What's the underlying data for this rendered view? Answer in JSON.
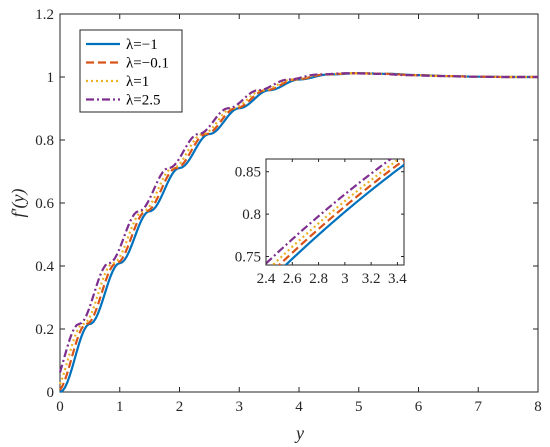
{
  "chart_data": {
    "type": "line",
    "title": "",
    "xlabel": "y",
    "ylabel": "f′(y)",
    "xlim": [
      0,
      8
    ],
    "ylim": [
      0,
      1.2
    ],
    "xticks": [
      0,
      1,
      2,
      3,
      4,
      5,
      6,
      7,
      8
    ],
    "yticks": [
      0,
      0.2,
      0.4,
      0.6,
      0.8,
      1,
      1.2
    ],
    "xtick_labels": [
      "0",
      "1",
      "2",
      "3",
      "4",
      "5",
      "6",
      "7",
      "8"
    ],
    "ytick_labels": [
      "0",
      "0.2",
      "0.4",
      "0.6",
      "0.8",
      "1",
      "1.2"
    ],
    "grid": false,
    "legend_position": "top-left",
    "series": [
      {
        "name": "λ=−1",
        "color": "#0072BD",
        "dash": "solid",
        "offset": 0.0
      },
      {
        "name": "λ=−0.1",
        "color": "#D95319",
        "dash": "dashed",
        "offset": 0.055
      },
      {
        "name": "λ=1",
        "color": "#EDB120",
        "dash": "dotted",
        "offset": 0.11
      },
      {
        "name": "λ=2.5",
        "color": "#7E2F8E",
        "dash": "dashdot",
        "offset": 0.18
      }
    ],
    "x": [
      0,
      0.5,
      1,
      1.5,
      2,
      2.5,
      3,
      3.5,
      4,
      4.5,
      5,
      5.5,
      6,
      6.5,
      7,
      7.5,
      8
    ],
    "base_values": [
      0,
      0.216,
      0.409,
      0.574,
      0.711,
      0.819,
      0.901,
      0.958,
      0.992,
      1.008,
      1.012,
      1.01,
      1.006,
      1.003,
      1.001,
      1.0,
      1.0
    ],
    "inset": {
      "xlim": [
        2.4,
        3.45
      ],
      "ylim": [
        0.74,
        0.865
      ],
      "xticks": [
        2.4,
        2.6,
        2.8,
        3,
        3.2,
        3.4
      ],
      "yticks": [
        0.75,
        0.8,
        0.85
      ],
      "xtick_labels": [
        "2.4",
        "2.6",
        "2.8",
        "3",
        "3.2",
        "3.4"
      ],
      "ytick_labels": [
        "0.75",
        "0.8",
        "0.85"
      ]
    }
  }
}
